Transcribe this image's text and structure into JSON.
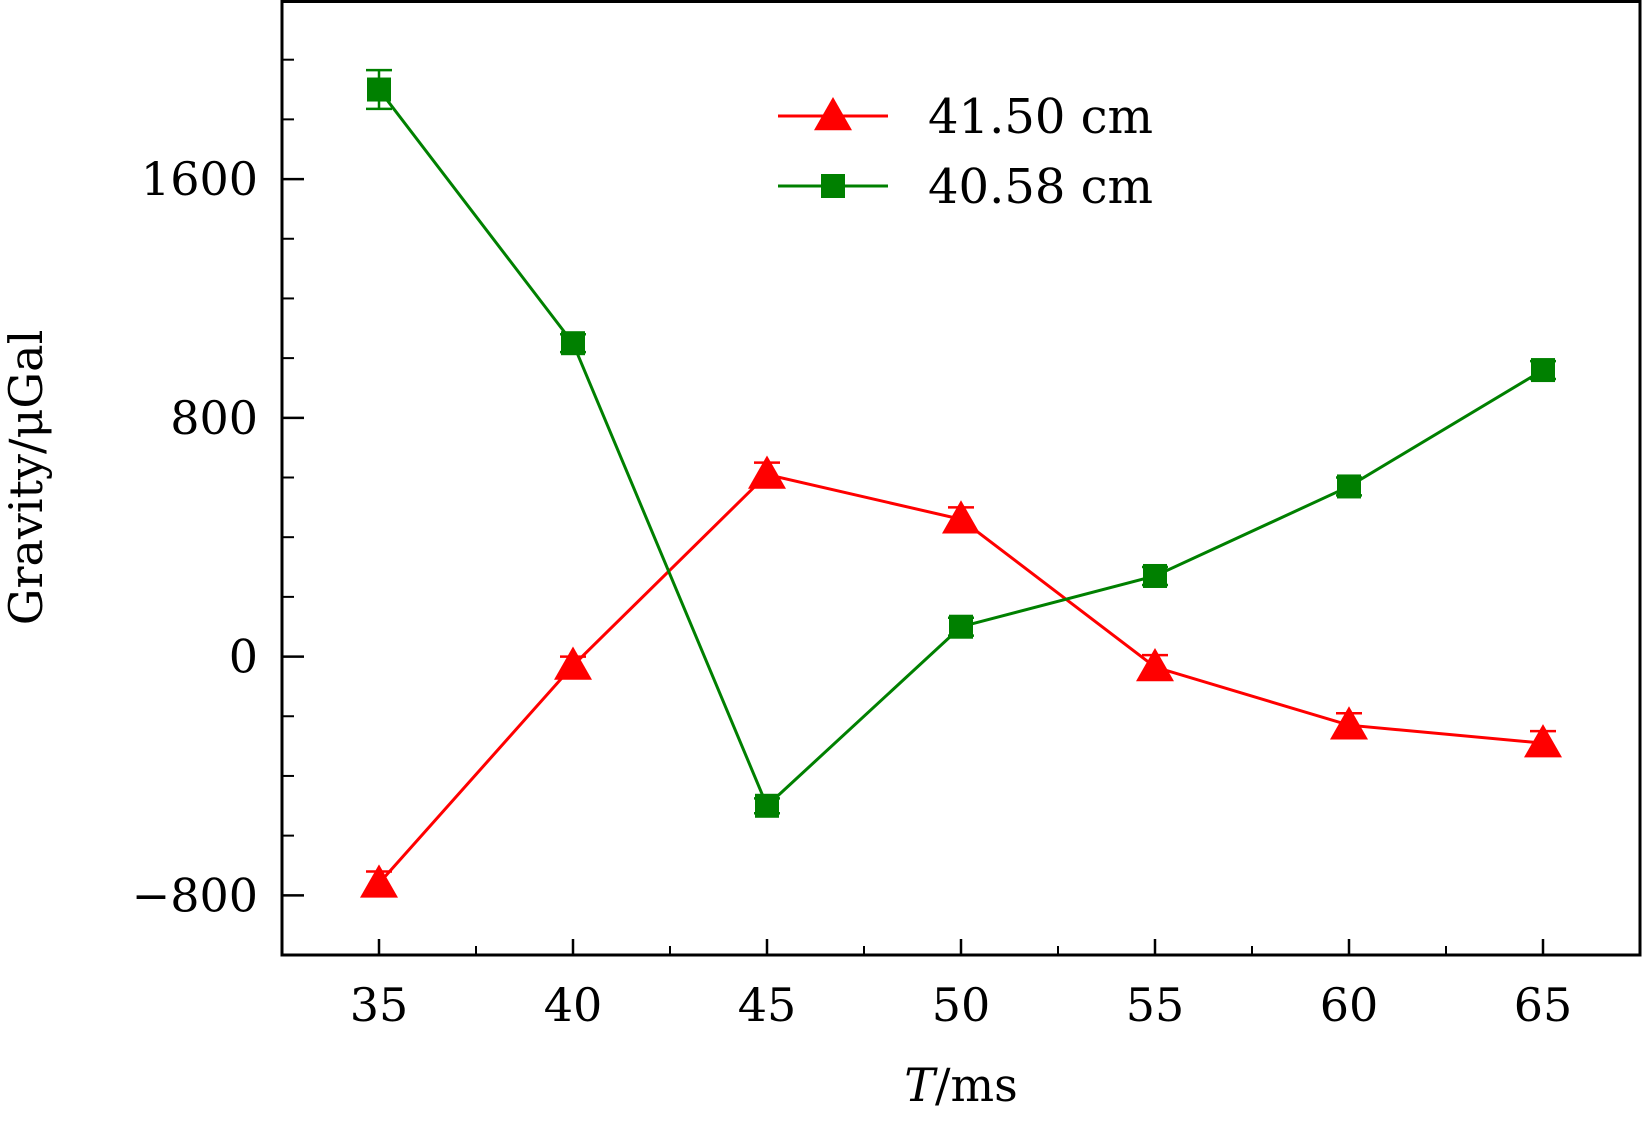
{
  "chart_data": {
    "type": "line",
    "title": "",
    "xlabel_italic": "T",
    "xlabel_rest": "/ms",
    "ylabel": "Gravity/μGal",
    "xlim": [
      32.5,
      67.5
    ],
    "ylim": [
      -1000,
      2200
    ],
    "x_ticks": [
      35,
      40,
      45,
      50,
      55,
      60,
      65
    ],
    "x_tick_labels": [
      "35",
      "40",
      "45",
      "50",
      "55",
      "60",
      "65"
    ],
    "y_ticks": [
      -800,
      0,
      800,
      1600
    ],
    "y_tick_labels": [
      "−800",
      "0",
      "800",
      "1600"
    ],
    "x_minor_step": 2.5,
    "y_minor_step": 200,
    "grid": false,
    "legend_position": "top-center",
    "x": [
      35,
      40,
      45,
      50,
      55,
      60,
      65
    ],
    "series": [
      {
        "name": "41.50 cm",
        "color": "#ff0000",
        "marker": "triangle",
        "values": [
          -760,
          -30,
          610,
          460,
          -35,
          -230,
          -290
        ],
        "errors": [
          40,
          30,
          40,
          40,
          40,
          40,
          40
        ]
      },
      {
        "name": "40.58 cm",
        "color": "#008000",
        "marker": "square",
        "values": [
          1900,
          1050,
          -500,
          100,
          270,
          570,
          960
        ],
        "errors": [
          65,
          30,
          25,
          30,
          30,
          30,
          30
        ]
      }
    ]
  }
}
